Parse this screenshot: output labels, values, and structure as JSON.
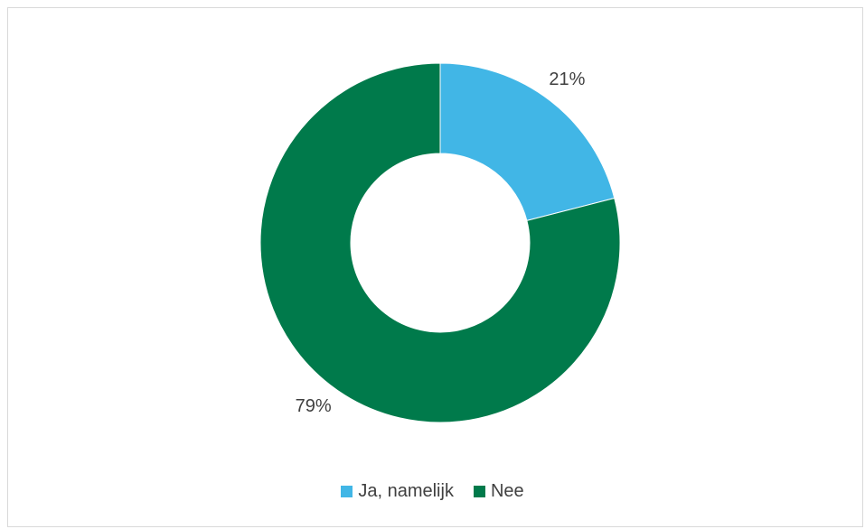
{
  "chart_data": {
    "type": "pie",
    "variant": "donut",
    "title": "",
    "categories": [
      "Ja, namelijk",
      "Nee"
    ],
    "values": [
      21,
      79
    ],
    "labels": [
      "21%",
      "79%"
    ],
    "colors": [
      "#41b6e6",
      "#007a4b"
    ],
    "legend": {
      "position": "bottom"
    }
  }
}
